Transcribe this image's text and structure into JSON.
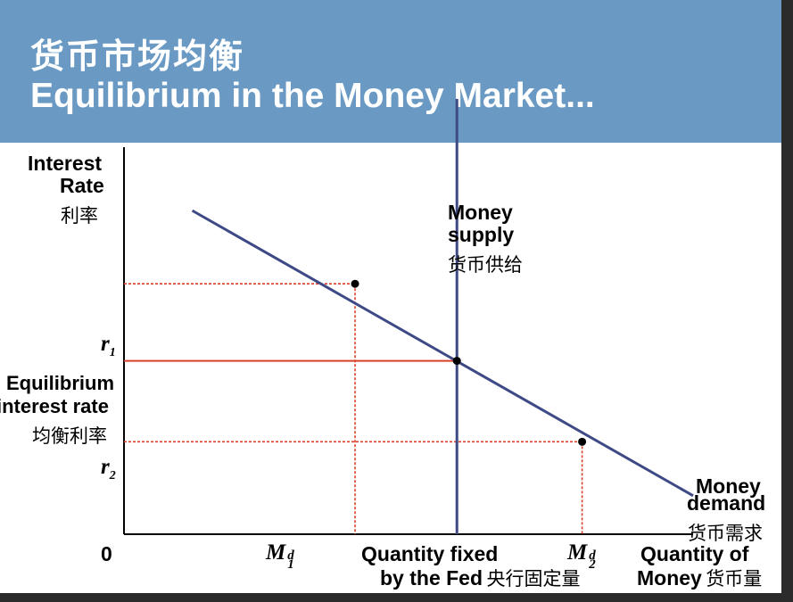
{
  "title": {
    "cn": "货币市场均衡",
    "en": "Equilibrium in the Money Market..."
  },
  "colors": {
    "header_bg": "#6a9ac3",
    "curve": "#3e4a86",
    "guide": "#d9402a",
    "frame": "#2b2b2b"
  },
  "chart_data": {
    "type": "line",
    "title": "Equilibrium in the Money Market",
    "xlabel": "Quantity of Money",
    "ylabel": "Interest Rate",
    "xlim": [
      0,
      10
    ],
    "ylim": [
      0,
      10
    ],
    "x_ticks": [
      {
        "x": 4.06,
        "label": "M",
        "sub": "1",
        "sup": "d"
      },
      {
        "x": 8.05,
        "label": "M",
        "sub": "2",
        "sup": "d"
      }
    ],
    "y_ticks": [
      {
        "y": 6.5,
        "label": "r",
        "sub": "1"
      },
      {
        "y": 2.4,
        "label": "r",
        "sub": "2"
      }
    ],
    "series": [
      {
        "name": "Money demand",
        "points": [
          [
            1.2,
            8.4
          ],
          [
            10.0,
            1.0
          ]
        ]
      },
      {
        "name": "Money supply",
        "points": [
          [
            5.85,
            0
          ],
          [
            5.85,
            11.3
          ]
        ]
      }
    ],
    "markers": [
      {
        "name": "demand-at-r1",
        "x": 4.06,
        "y": 6.5
      },
      {
        "name": "equilibrium",
        "x": 5.85,
        "y": 4.5
      },
      {
        "name": "demand-at-r2",
        "x": 8.05,
        "y": 2.4
      }
    ],
    "guides": [
      {
        "y": 6.5,
        "x_end": 4.06,
        "style": "dashed"
      },
      {
        "y": 4.5,
        "x_end": 5.85,
        "style": "solid"
      },
      {
        "y": 2.4,
        "x_end": 8.05,
        "style": "dashed"
      }
    ]
  },
  "labels": {
    "y_axis": {
      "line1": "Interest",
      "line2": "Rate",
      "cn": "利率"
    },
    "money_supply": {
      "line1": "Money",
      "line2": "supply",
      "cn": "货币供给"
    },
    "money_demand": {
      "line1": "Money",
      "line2": "demand",
      "cn": "货币需求"
    },
    "equilibrium_rate": {
      "line1": "Equilibrium",
      "line2": "interest rate",
      "cn": "均衡利率"
    },
    "origin": "0",
    "quantity_fixed": {
      "line1": "Quantity fixed",
      "line2": "by the Fed",
      "cn": "央行固定量"
    },
    "x_axis": {
      "line1": "Quantity of",
      "line2": "Money",
      "cn": "货币量"
    }
  }
}
